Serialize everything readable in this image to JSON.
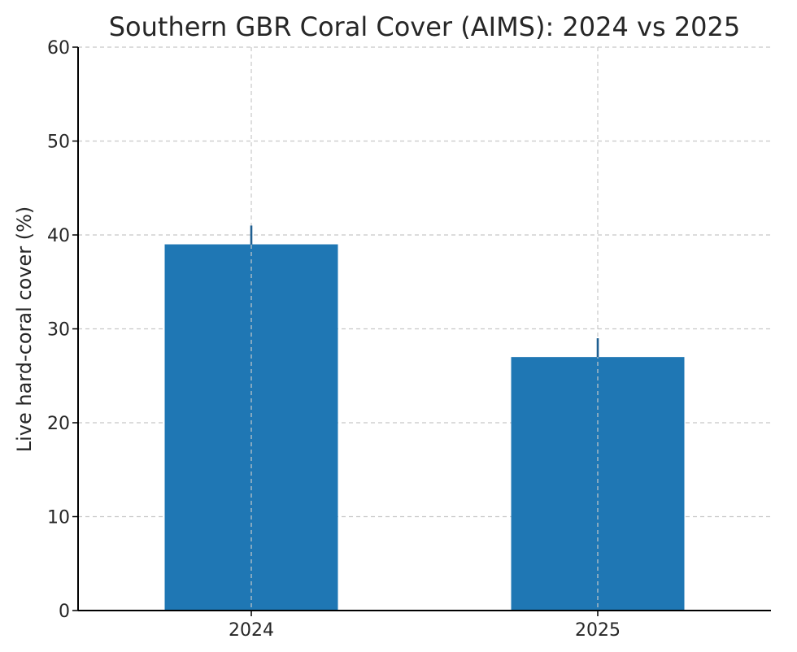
{
  "chart_data": {
    "type": "bar",
    "title": "Southern GBR Coral Cover (AIMS): 2024 vs 2025",
    "xlabel": "",
    "ylabel": "Live hard-coral cover (%)",
    "categories": [
      "2024",
      "2025"
    ],
    "values": [
      39,
      27
    ],
    "error_upper": [
      41,
      29
    ],
    "ylim": [
      0,
      60
    ],
    "yticks": [
      0,
      10,
      20,
      30,
      40,
      50,
      60
    ],
    "grid": true,
    "legend": "none"
  },
  "colors": {
    "bar": "#1f77b4",
    "error_bar": "#1f5f91"
  }
}
